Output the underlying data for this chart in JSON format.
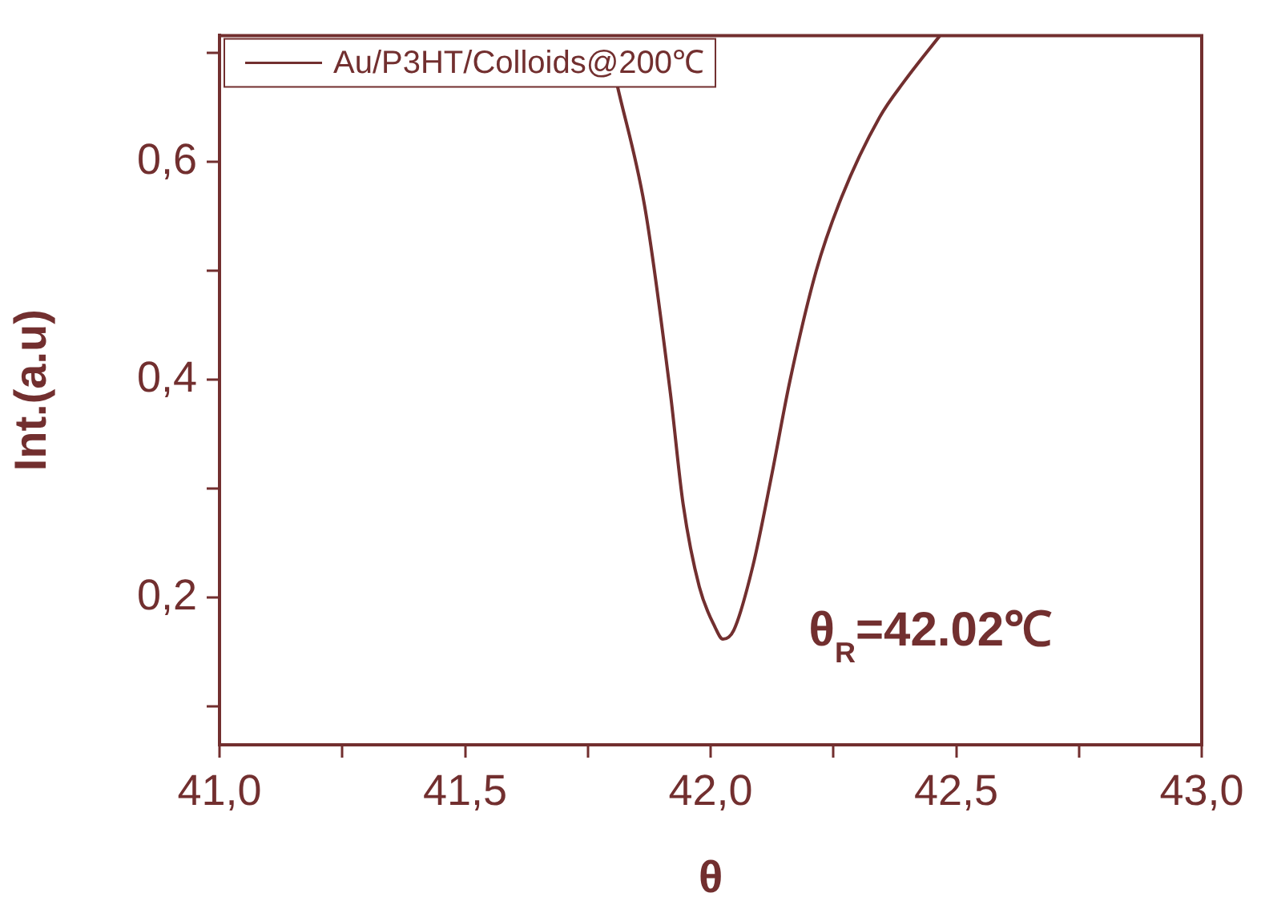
{
  "chart_data": {
    "type": "line",
    "xlabel": "θ",
    "ylabel": "Int.(a.u)",
    "legend": "top left",
    "marker": "none",
    "line_style": "solid",
    "grid": false,
    "series": [
      {
        "name": "Au/P3HT/Colloids@200℃",
        "color": "#722f2f",
        "x": [
          41.809,
          41.867,
          41.918,
          41.944,
          41.977,
          42.009,
          42.025,
          42.047,
          42.086,
          42.125,
          42.161,
          42.215,
          42.267,
          42.344,
          42.396,
          42.467
        ],
        "values": [
          0.672,
          0.556,
          0.388,
          0.286,
          0.21,
          0.173,
          0.162,
          0.17,
          0.229,
          0.314,
          0.398,
          0.5,
          0.568,
          0.641,
          0.675,
          0.716
        ]
      }
    ],
    "xlim": [
      41,
      43
    ],
    "ylim": [
      0.065,
      0.716
    ],
    "xticks": [
      {
        "value": 41,
        "label": "41,0"
      },
      {
        "value": 41.25,
        "label": null
      },
      {
        "value": 41.5,
        "label": "41,5"
      },
      {
        "value": 41.75,
        "label": null
      },
      {
        "value": 42,
        "label": "42,0"
      },
      {
        "value": 42.25,
        "label": null
      },
      {
        "value": 42.5,
        "label": "42,5"
      },
      {
        "value": 42.75,
        "label": null
      },
      {
        "value": 43,
        "label": "43,0"
      }
    ],
    "yticks": [
      {
        "value": 0.1,
        "label": null
      },
      {
        "value": 0.2,
        "label": "0,2"
      },
      {
        "value": 0.3,
        "label": null
      },
      {
        "value": 0.4,
        "label": "0,4"
      },
      {
        "value": 0.5,
        "label": null
      },
      {
        "value": 0.6,
        "label": "0,6"
      },
      {
        "value": 0.7,
        "label": null
      }
    ],
    "annotations": [
      "θ$_{R}$=42.02℃"
    ]
  }
}
